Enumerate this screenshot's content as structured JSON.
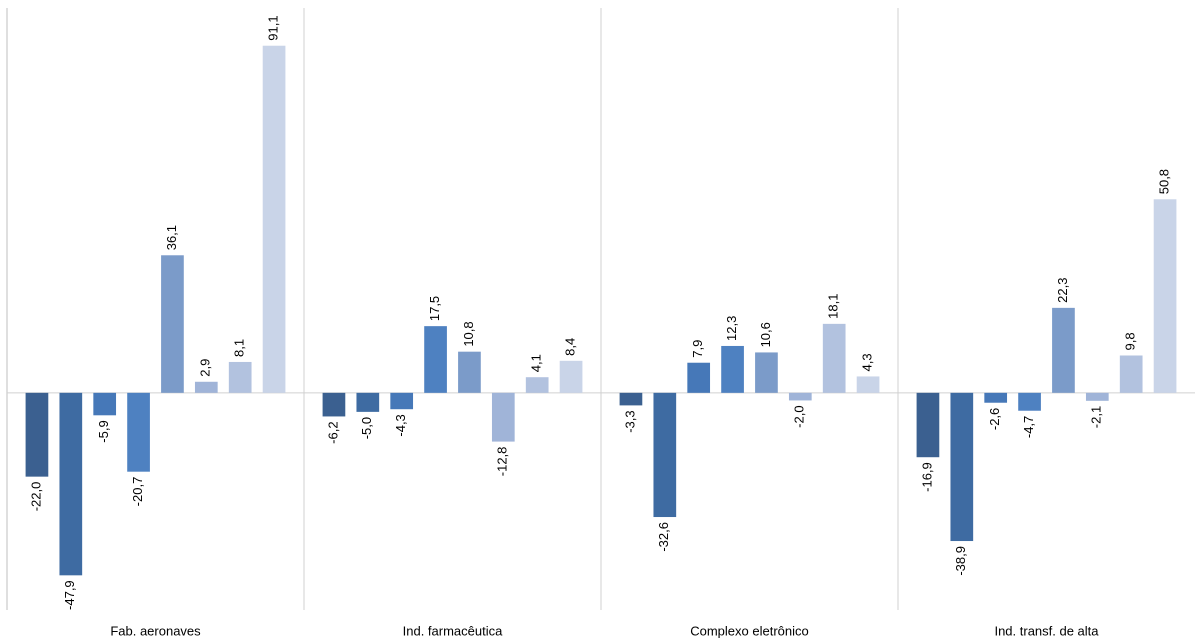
{
  "chart_data": {
    "type": "bar",
    "categories": [
      "Fab. aeronaves",
      "Ind. farmacêutica",
      "Complexo eletrônico",
      "Ind. transf. de alta"
    ],
    "ylim": [
      -57,
      101
    ],
    "series": [
      {
        "color": "#3b6090",
        "values": [
          -22.0,
          -6.2,
          -3.3,
          -16.9
        ],
        "value_labels": [
          "-22,0",
          "-6,2",
          "-3,3",
          "-16,9"
        ]
      },
      {
        "color": "#3e6ba2",
        "values": [
          -47.9,
          -5.0,
          -32.6,
          -38.9
        ],
        "value_labels": [
          "-47,9",
          "-5,0",
          "-32,6",
          "-38,9"
        ]
      },
      {
        "color": "#4678b8",
        "values": [
          -5.9,
          -4.3,
          7.9,
          -2.6
        ],
        "value_labels": [
          "-5,9",
          "-4,3",
          "7,9",
          "-2,6"
        ]
      },
      {
        "color": "#4e81c1",
        "values": [
          -20.7,
          17.5,
          12.3,
          -4.7
        ],
        "value_labels": [
          "-20,7",
          "17,5",
          "12,3",
          "-4,7"
        ]
      },
      {
        "color": "#7b9bc9",
        "values": [
          36.1,
          10.8,
          10.6,
          22.3
        ],
        "value_labels": [
          "36,1",
          "10,8",
          "10,6",
          "22,3"
        ]
      },
      {
        "color": "#a0b4d8",
        "values": [
          2.9,
          -12.8,
          -2.0,
          -2.1
        ],
        "value_labels": [
          "2,9",
          "-12,8",
          "-2,0",
          "-2,1"
        ]
      },
      {
        "color": "#b2c2df",
        "values": [
          8.1,
          4.1,
          18.1,
          9.8
        ],
        "value_labels": [
          "8,1",
          "4,1",
          "18,1",
          "9,8"
        ]
      },
      {
        "color": "#c9d4e8",
        "values": [
          91.1,
          8.4,
          4.3,
          50.8
        ],
        "value_labels": [
          "91,1",
          "8,4",
          "4,3",
          "50,8"
        ]
      }
    ]
  }
}
